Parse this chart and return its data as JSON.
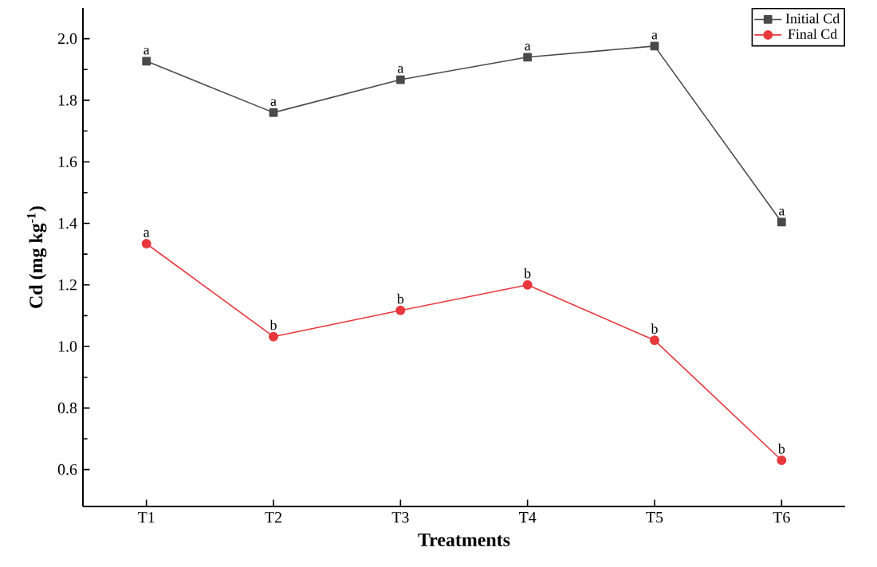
{
  "chart_data": {
    "type": "line",
    "xlabel": "Treatments",
    "ylabel": "Cd (mg kg$^{-1}$)",
    "categories": [
      "T1",
      "T2",
      "T3",
      "T4",
      "T5",
      "T6"
    ],
    "series": [
      {
        "name": "Initial Cd",
        "color": "#4a4a4a",
        "marker": "square",
        "values": [
          1.927,
          1.76,
          1.867,
          1.94,
          1.976,
          1.404
        ]
      },
      {
        "name": "Final Cd",
        "color": "#e8383d",
        "marker": "circle",
        "values": [
          1.334,
          1.032,
          1.117,
          1.2,
          1.02,
          0.63
        ]
      }
    ],
    "ylim": [
      0.48,
      2.1
    ],
    "yticks": [
      0.6,
      0.8,
      {
        "value": 1.0,
        "label": "1.0"
      },
      1.2,
      1.4,
      1.6,
      1.8,
      {
        "value": 2.0,
        "label": "2.0"
      }
    ],
    "legend": "top right",
    "grid": false,
    "line_style": "solid",
    "annotations": [
      {
        "text": "a",
        "x": "T1",
        "y": 1.927
      },
      {
        "text": "a",
        "x": "T2",
        "y": 1.76
      },
      {
        "text": "a",
        "x": "T3",
        "y": 1.867
      },
      {
        "text": "a",
        "x": "T4",
        "y": 1.94
      },
      {
        "text": "a",
        "x": "T5",
        "y": 1.976
      },
      {
        "text": "a",
        "x": "T6",
        "y": 1.404
      },
      {
        "text": "a",
        "x": "T1",
        "y": 1.334
      },
      {
        "text": "b",
        "x": "T2",
        "y": 1.032
      },
      {
        "text": "b",
        "x": "T3",
        "y": 1.117
      },
      {
        "text": "b",
        "x": "T4",
        "y": 1.2
      },
      {
        "text": "b",
        "x": "T5",
        "y": 1.02
      },
      {
        "text": "b",
        "x": "T6",
        "y": 0.63
      }
    ]
  }
}
